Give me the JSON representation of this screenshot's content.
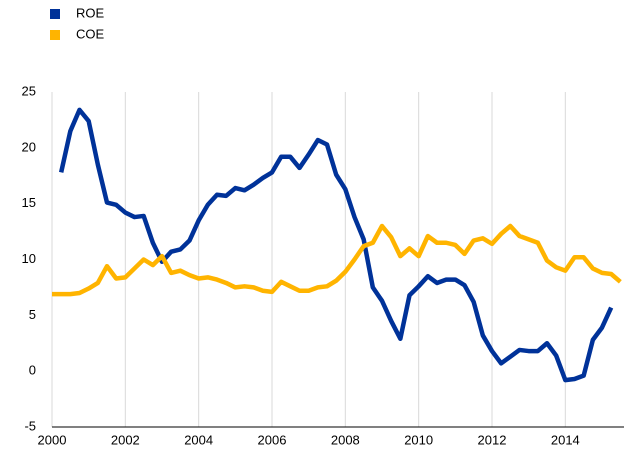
{
  "chart_data": {
    "type": "line",
    "x": [
      2000,
      2000.25,
      2000.5,
      2000.75,
      2001,
      2001.25,
      2001.5,
      2001.75,
      2002,
      2002.25,
      2002.5,
      2002.75,
      2003,
      2003.25,
      2003.5,
      2003.75,
      2004,
      2004.25,
      2004.5,
      2004.75,
      2005,
      2005.25,
      2005.5,
      2005.75,
      2006,
      2006.25,
      2006.5,
      2006.75,
      2007,
      2007.25,
      2007.5,
      2007.75,
      2008,
      2008.25,
      2008.5,
      2008.75,
      2009,
      2009.25,
      2009.5,
      2009.75,
      2010,
      2010.25,
      2010.5,
      2010.75,
      2011,
      2011.25,
      2011.5,
      2011.75,
      2012,
      2012.25,
      2012.5,
      2012.75,
      2013,
      2013.25,
      2013.5,
      2013.75,
      2014,
      2014.25,
      2014.5,
      2014.75,
      2015,
      2015.25,
      2015.5
    ],
    "series": [
      {
        "name": "ROE",
        "color": "#003299",
        "values": [
          null,
          17.8,
          21.5,
          23.4,
          22.4,
          18.5,
          15.1,
          14.9,
          14.2,
          13.8,
          13.9,
          11.5,
          9.8,
          10.7,
          10.9,
          11.7,
          13.5,
          14.9,
          15.8,
          15.7,
          16.4,
          16.2,
          16.7,
          17.3,
          17.8,
          19.2,
          19.2,
          18.2,
          19.4,
          20.7,
          20.3,
          17.6,
          16.3,
          13.8,
          11.8,
          7.5,
          6.3,
          4.5,
          2.9,
          6.8,
          7.6,
          8.5,
          7.9,
          8.2,
          8.2,
          7.7,
          6.2,
          3.2,
          1.8,
          0.7,
          1.3,
          1.9,
          1.8,
          1.8,
          2.5,
          1.4,
          -0.8,
          -0.7,
          -0.4,
          2.8,
          3.9,
          5.7,
          null
        ]
      },
      {
        "name": "COE",
        "color": "#ffb400",
        "values": [
          6.9,
          6.9,
          6.9,
          7.0,
          7.4,
          7.9,
          9.4,
          8.3,
          8.4,
          9.2,
          10.0,
          9.5,
          10.3,
          8.8,
          9.0,
          8.6,
          8.3,
          8.4,
          8.2,
          7.9,
          7.5,
          7.6,
          7.5,
          7.2,
          7.1,
          8.0,
          7.6,
          7.2,
          7.2,
          7.5,
          7.6,
          8.1,
          8.9,
          10.0,
          11.2,
          11.5,
          13.0,
          12.0,
          10.3,
          11.0,
          10.3,
          12.1,
          11.5,
          11.5,
          11.3,
          10.5,
          11.7,
          11.9,
          11.4,
          12.3,
          13.0,
          12.1,
          11.8,
          11.5,
          9.9,
          9.3,
          9.0,
          10.2,
          10.2,
          9.2,
          8.8,
          8.7,
          8.0
        ]
      }
    ],
    "xlim": [
      2000,
      2015.6
    ],
    "xticks": [
      2000,
      2002,
      2004,
      2006,
      2008,
      2010,
      2012,
      2014
    ],
    "ylim": [
      -5,
      25
    ],
    "yticks": [
      -5,
      0,
      5,
      10,
      15,
      20,
      25
    ],
    "grid": true,
    "legend": "top-left"
  }
}
